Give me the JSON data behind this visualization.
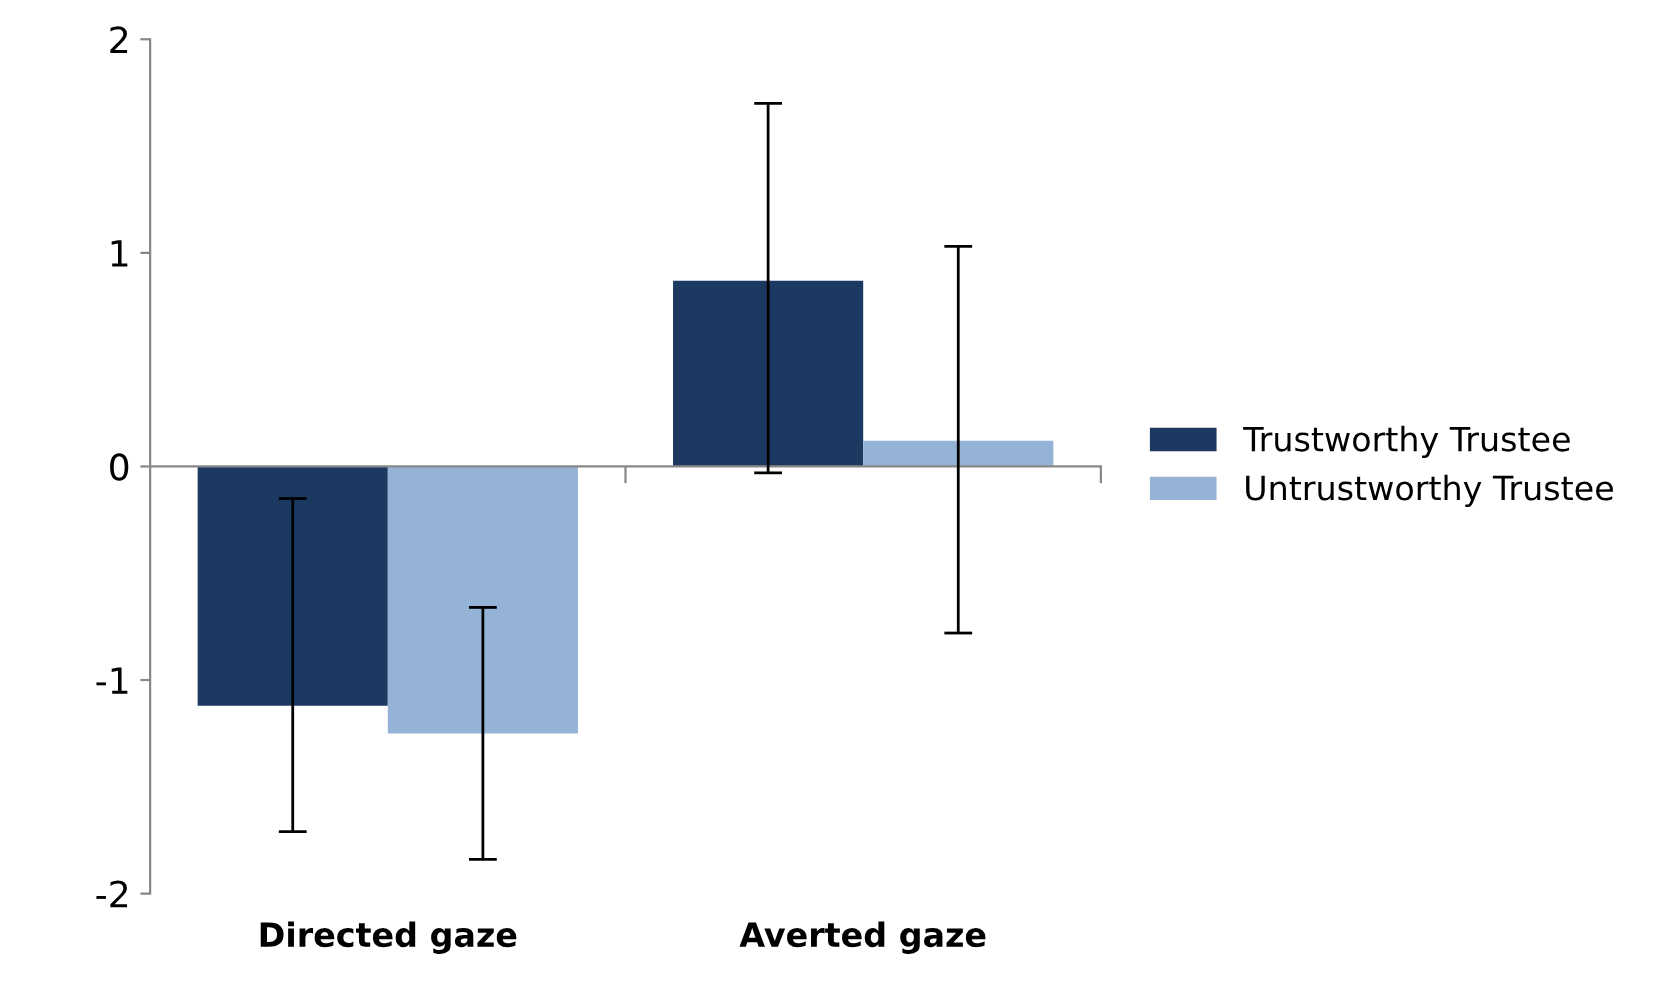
{
  "chart_data": {
    "type": "bar",
    "categories": [
      "Directed gaze",
      "Averted gaze"
    ],
    "series": [
      {
        "name": "Trustworthy Trustee",
        "color": "#1c3961",
        "values": [
          -1.12,
          0.87
        ],
        "errors": [
          [
            -1.71,
            -0.15
          ],
          [
            -0.03,
            1.7
          ]
        ]
      },
      {
        "name": "Untrustworthy Trustee",
        "color": "#95b3d7",
        "values": [
          -1.25,
          0.12
        ],
        "errors": [
          [
            -1.84,
            -0.66
          ],
          [
            -0.78,
            1.03
          ]
        ]
      }
    ],
    "ylim": [
      -2,
      2
    ],
    "yticks": [
      -2,
      -1,
      0,
      1,
      2
    ],
    "legend": "right"
  }
}
